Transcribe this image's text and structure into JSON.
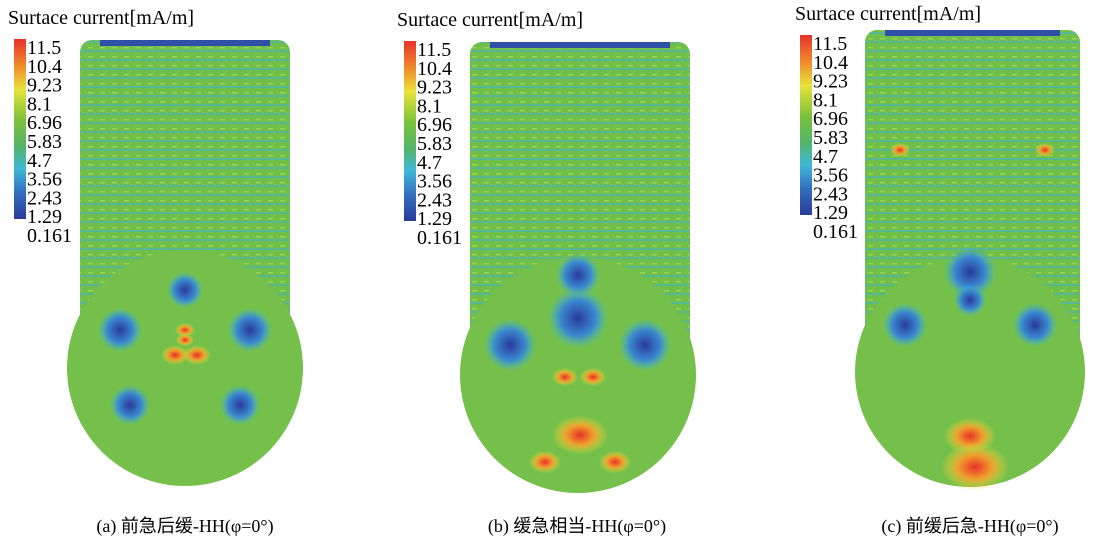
{
  "panels": [
    {
      "legend_title": "Surtace current[mA/m]",
      "legend_labels": [
        "11.5",
        "10.4",
        "9.23",
        "8.1",
        "6.96",
        "5.83",
        "4.7",
        "3.56",
        "2.43",
        "1.29",
        "0.161"
      ],
      "caption": "(a)  前急后缓-HH(φ=0°)"
    },
    {
      "legend_title": "Surtace current[mA/m]",
      "legend_labels": [
        "11.5",
        "10.4",
        "9.23",
        "8.1",
        "6.96",
        "5.83",
        "4.7",
        "3.56",
        "2.43",
        "1.29",
        "0.161"
      ],
      "caption": "(b)  缓急相当-HH(φ=0°)"
    },
    {
      "legend_title": "Surtace current[mA/m]",
      "legend_labels": [
        "11.5",
        "10.4",
        "9.23",
        "8.1",
        "6.96",
        "5.83",
        "4.7",
        "3.56",
        "2.43",
        "1.29",
        "0.161"
      ],
      "caption": "(c)  前缓后急-HH(φ=0°)"
    }
  ]
}
